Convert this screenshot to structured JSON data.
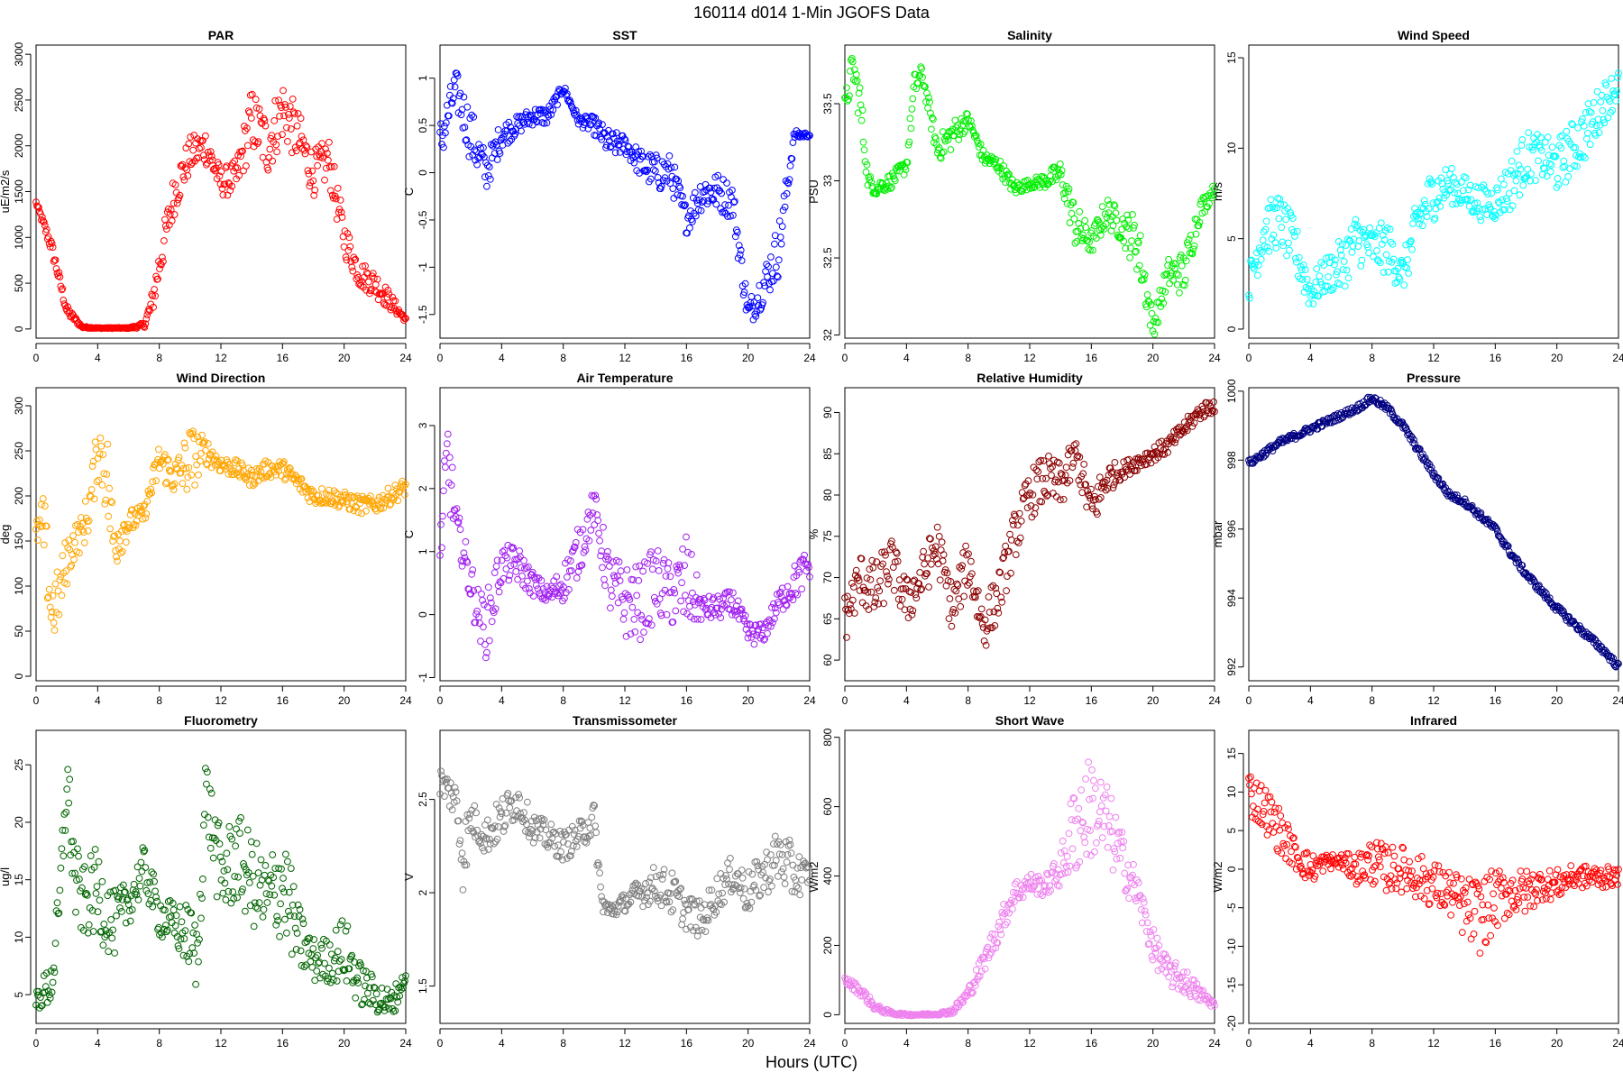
{
  "figure": {
    "title": "160114   d014   1-Min  JGOFS Data",
    "xlabel": "Hours (UTC)"
  },
  "chart_data": [
    {
      "type": "scatter",
      "title": "PAR",
      "ylabel": "uE/m2/s",
      "color": "#ff0000",
      "xlim": [
        0,
        24
      ],
      "xticks": [
        0,
        4,
        8,
        12,
        16,
        20,
        24
      ],
      "ylim": [
        -100,
        3100
      ],
      "yticks": [
        0,
        500,
        1000,
        1500,
        2000,
        2500,
        3000
      ],
      "x": [
        0,
        1,
        2,
        3,
        4,
        5,
        6,
        7,
        7.5,
        8,
        9,
        10,
        11,
        12,
        13,
        14,
        15,
        16,
        17,
        18,
        19,
        20,
        21,
        22,
        23,
        24
      ],
      "y": [
        1380,
        900,
        200,
        20,
        10,
        10,
        10,
        40,
        250,
        700,
        1500,
        1900,
        2000,
        1600,
        1650,
        2300,
        2000,
        2400,
        2100,
        1700,
        1850,
        1000,
        600,
        500,
        300,
        100
      ],
      "spread": [
        20,
        80,
        60,
        10,
        5,
        5,
        5,
        30,
        150,
        200,
        250,
        200,
        200,
        150,
        200,
        350,
        350,
        350,
        300,
        250,
        250,
        200,
        150,
        150,
        100,
        20
      ]
    },
    {
      "type": "scatter",
      "title": "SST",
      "ylabel": "C",
      "color": "#0000ff",
      "xlim": [
        0,
        24
      ],
      "xticks": [
        0,
        4,
        8,
        12,
        16,
        20,
        24
      ],
      "ylim": [
        -1.75,
        1.35
      ],
      "yticks": [
        -1.5,
        -1.0,
        -0.5,
        0.0,
        0.5,
        1.0
      ],
      "x": [
        0,
        1,
        2,
        3,
        4,
        5,
        6,
        7,
        8,
        9,
        10,
        11,
        12,
        13,
        14,
        15,
        16,
        17,
        18,
        19,
        20,
        21,
        22,
        23,
        24
      ],
      "y": [
        0.3,
        0.9,
        0.4,
        0.0,
        0.4,
        0.5,
        0.6,
        0.6,
        0.9,
        0.55,
        0.5,
        0.3,
        0.3,
        0.1,
        0.0,
        0.0,
        -0.5,
        -0.2,
        -0.2,
        -0.3,
        -1.5,
        -1.2,
        -0.8,
        0.4,
        0.4
      ],
      "spread": [
        0.25,
        0.2,
        0.3,
        0.2,
        0.15,
        0.1,
        0.1,
        0.1,
        0.05,
        0.05,
        0.1,
        0.15,
        0.1,
        0.15,
        0.2,
        0.2,
        0.15,
        0.2,
        0.2,
        0.2,
        0.15,
        0.2,
        0.3,
        0.05,
        0.02
      ]
    },
    {
      "type": "scatter",
      "title": "Salinity",
      "ylabel": "PSU",
      "color": "#00ee00",
      "xlim": [
        0,
        24
      ],
      "xticks": [
        0,
        4,
        8,
        12,
        16,
        20,
        24
      ],
      "ylim": [
        31.98,
        33.88
      ],
      "yticks": [
        32.0,
        32.5,
        33.0,
        33.5
      ],
      "x": [
        0,
        0.5,
        1,
        1.5,
        2,
        3,
        4,
        4.5,
        5,
        6,
        7,
        8,
        9,
        10,
        11,
        12,
        13,
        14,
        15,
        16,
        17,
        18,
        19,
        20,
        21,
        22,
        23,
        24
      ],
      "y": [
        33.45,
        33.75,
        33.5,
        33.0,
        32.95,
        33.0,
        33.1,
        33.6,
        33.7,
        33.2,
        33.3,
        33.4,
        33.15,
        33.1,
        32.95,
        32.98,
        33.0,
        33.05,
        32.7,
        32.6,
        32.8,
        32.7,
        32.6,
        32.05,
        32.4,
        32.4,
        32.8,
        32.95
      ],
      "spread": [
        0.1,
        0.1,
        0.15,
        0.05,
        0.05,
        0.05,
        0.05,
        0.1,
        0.05,
        0.08,
        0.1,
        0.05,
        0.05,
        0.05,
        0.05,
        0.03,
        0.05,
        0.08,
        0.15,
        0.08,
        0.1,
        0.1,
        0.2,
        0.08,
        0.1,
        0.15,
        0.08,
        0.03
      ]
    },
    {
      "type": "scatter",
      "title": "Wind Speed",
      "ylabel": "m/s",
      "color": "#00ffff",
      "xlim": [
        0,
        24
      ],
      "xticks": [
        0,
        4,
        8,
        12,
        16,
        20,
        24
      ],
      "ylim": [
        -0.5,
        15.7
      ],
      "yticks": [
        0,
        5,
        10,
        15
      ],
      "x": [
        0,
        1,
        2,
        3,
        4,
        5,
        6,
        7,
        8,
        9,
        10,
        11,
        12,
        13,
        14,
        15,
        16,
        17,
        18,
        19,
        20,
        21,
        22,
        23,
        24
      ],
      "y": [
        2.5,
        5.5,
        6.0,
        4.5,
        2.0,
        3.0,
        3.5,
        5.0,
        4.5,
        4.5,
        3.0,
        6.0,
        7.5,
        8.0,
        7.5,
        7.0,
        7.0,
        8.0,
        9.5,
        9.5,
        9.0,
        10.0,
        11.0,
        12.5,
        13.5
      ],
      "spread": [
        1.0,
        1.5,
        1.5,
        1.5,
        1.0,
        1.0,
        1.5,
        1.5,
        1.2,
        1.5,
        1.0,
        1.5,
        1.5,
        1.0,
        1.0,
        1.0,
        1.0,
        1.5,
        1.5,
        1.2,
        1.5,
        1.5,
        1.5,
        1.2,
        1.0
      ]
    },
    {
      "type": "scatter",
      "title": "Wind Direction",
      "ylabel": "deg",
      "color": "#ffa500",
      "xlim": [
        0,
        24
      ],
      "xticks": [
        0,
        4,
        8,
        12,
        16,
        20,
        24
      ],
      "ylim": [
        -5,
        320
      ],
      "yticks": [
        0,
        50,
        100,
        150,
        200,
        250,
        300
      ],
      "x": [
        0,
        0.5,
        1,
        1.5,
        2,
        2.5,
        3,
        3.5,
        4,
        4.5,
        5,
        6,
        7,
        8,
        9,
        10,
        11,
        12,
        13,
        14,
        15,
        16,
        17,
        18,
        19,
        20,
        21,
        22,
        23,
        24
      ],
      "y": [
        160,
        165,
        70,
        90,
        130,
        150,
        160,
        190,
        250,
        240,
        150,
        170,
        180,
        240,
        220,
        240,
        250,
        235,
        230,
        220,
        230,
        230,
        215,
        200,
        200,
        195,
        190,
        190,
        200,
        210
      ],
      "spread": [
        10,
        40,
        40,
        30,
        30,
        20,
        20,
        30,
        30,
        60,
        40,
        15,
        10,
        20,
        20,
        40,
        15,
        10,
        10,
        10,
        10,
        10,
        10,
        10,
        10,
        10,
        10,
        10,
        10,
        10
      ]
    },
    {
      "type": "scatter",
      "title": "Air Temperature",
      "ylabel": "C",
      "color": "#a020f0",
      "xlim": [
        0,
        24
      ],
      "xticks": [
        0,
        4,
        8,
        12,
        16,
        20,
        24
      ],
      "ylim": [
        -1.05,
        3.6
      ],
      "yticks": [
        -1,
        0,
        1,
        2,
        3
      ],
      "x": [
        0,
        0.5,
        1,
        1.5,
        2,
        2.5,
        3,
        3.5,
        4,
        5,
        6,
        7,
        8,
        9,
        10,
        11,
        12,
        13,
        14,
        15,
        16,
        17,
        18,
        19,
        20,
        21,
        22,
        23,
        24
      ],
      "y": [
        1.0,
        2.5,
        1.5,
        1.0,
        0.5,
        0.0,
        -0.2,
        0.3,
        0.8,
        0.8,
        0.5,
        0.3,
        0.5,
        1.0,
        1.7,
        0.5,
        0.2,
        0.2,
        0.5,
        0.3,
        0.5,
        0.1,
        0.1,
        0.2,
        -0.3,
        -0.3,
        0.2,
        0.5,
        0.8
      ],
      "spread": [
        0.3,
        0.8,
        0.3,
        0.3,
        0.4,
        0.4,
        0.5,
        0.5,
        0.3,
        0.3,
        0.2,
        0.15,
        0.3,
        0.4,
        0.3,
        0.5,
        0.6,
        0.6,
        0.6,
        0.5,
        0.8,
        0.2,
        0.2,
        0.2,
        0.2,
        0.15,
        0.2,
        0.3,
        0.3
      ]
    },
    {
      "type": "scatter",
      "title": "Relative Humidity",
      "ylabel": "%",
      "color": "#8b0000",
      "xlim": [
        0,
        24
      ],
      "xticks": [
        0,
        4,
        8,
        12,
        16,
        20,
        24
      ],
      "ylim": [
        57.5,
        93
      ],
      "yticks": [
        60,
        65,
        70,
        75,
        80,
        85,
        90
      ],
      "x": [
        0,
        1,
        2,
        3,
        4,
        5,
        6,
        7,
        8,
        9,
        10,
        11,
        12,
        13,
        14,
        15,
        16,
        17,
        18,
        19,
        20,
        21,
        22,
        23,
        24
      ],
      "y": [
        65,
        70,
        68,
        72,
        67,
        70,
        74,
        66,
        72,
        64,
        68,
        75,
        80,
        82,
        81,
        85,
        78,
        82,
        83,
        84,
        85,
        86,
        88,
        90,
        91
      ],
      "spread": [
        3,
        3,
        4,
        3,
        3,
        3,
        3,
        3,
        3,
        3,
        3,
        3,
        3,
        3,
        3,
        2,
        3,
        2,
        1,
        1,
        1,
        1,
        1,
        1,
        1
      ]
    },
    {
      "type": "scatter",
      "title": "Pressure",
      "ylabel": "mbar",
      "color": "#000080",
      "xlim": [
        0,
        24
      ],
      "xticks": [
        0,
        4,
        8,
        12,
        16,
        20,
        24
      ],
      "ylim": [
        991.6,
        1000.1
      ],
      "yticks": [
        992,
        994,
        996,
        998,
        1000
      ],
      "x": [
        0,
        1,
        2,
        3,
        4,
        5,
        6,
        7,
        8,
        9,
        10,
        11,
        12,
        13,
        14,
        15,
        16,
        17,
        18,
        19,
        20,
        21,
        22,
        23,
        24
      ],
      "y": [
        997.9,
        998.2,
        998.5,
        998.7,
        998.9,
        999.1,
        999.3,
        999.5,
        999.8,
        999.5,
        999.0,
        998.3,
        997.6,
        997.0,
        996.8,
        996.4,
        996.0,
        995.3,
        994.7,
        994.2,
        993.7,
        993.3,
        992.9,
        992.5,
        992.0
      ],
      "spread": [
        0.1,
        0.1,
        0.1,
        0.1,
        0.1,
        0.1,
        0.1,
        0.1,
        0.1,
        0.1,
        0.1,
        0.1,
        0.1,
        0.1,
        0.1,
        0.1,
        0.1,
        0.1,
        0.1,
        0.1,
        0.1,
        0.1,
        0.1,
        0.1,
        0.1
      ]
    },
    {
      "type": "scatter",
      "title": "Fluorometry",
      "ylabel": "ug/l",
      "color": "#006400",
      "xlim": [
        0,
        24
      ],
      "xticks": [
        0,
        4,
        8,
        12,
        16,
        20,
        24
      ],
      "ylim": [
        2.5,
        28
      ],
      "yticks": [
        5,
        10,
        15,
        20,
        25
      ],
      "x": [
        0,
        1,
        1.5,
        2,
        2.5,
        3,
        4,
        5,
        6,
        7,
        8,
        9,
        10,
        10.5,
        11,
        12,
        13,
        14,
        15,
        16,
        17,
        18,
        19,
        20,
        21,
        22,
        23,
        24
      ],
      "y": [
        4.5,
        6,
        12,
        24,
        15,
        13,
        14,
        11,
        13,
        16,
        12,
        11,
        10,
        8,
        23,
        15,
        17,
        15,
        13,
        15,
        10,
        8,
        8,
        9,
        6,
        5,
        4,
        6.5
      ],
      "spread": [
        1,
        2,
        3,
        3,
        4,
        3,
        4,
        3,
        2,
        2,
        2,
        2,
        3,
        3,
        3,
        4,
        4,
        4,
        4,
        5,
        3,
        2,
        2,
        3,
        2,
        1.5,
        1.5,
        0.5
      ]
    },
    {
      "type": "scatter",
      "title": "Transmissometer",
      "ylabel": "V",
      "color": "#808080",
      "xlim": [
        0,
        24
      ],
      "xticks": [
        0,
        4,
        8,
        12,
        16,
        20,
        24
      ],
      "ylim": [
        1.3,
        2.87
      ],
      "yticks": [
        1.5,
        2.0,
        2.5
      ],
      "x": [
        0,
        1,
        1.5,
        2,
        3,
        4,
        5,
        6,
        7,
        8,
        9,
        10,
        10.5,
        11,
        12,
        13,
        14,
        15,
        16,
        17,
        18,
        19,
        20,
        21,
        22,
        23,
        24
      ],
      "y": [
        2.6,
        2.5,
        2.2,
        2.4,
        2.3,
        2.4,
        2.5,
        2.35,
        2.3,
        2.25,
        2.3,
        2.4,
        1.95,
        1.9,
        1.95,
        2.0,
        2.05,
        2.0,
        1.9,
        1.85,
        2.0,
        2.1,
        2.0,
        2.1,
        2.2,
        2.1,
        2.1
      ],
      "spread": [
        0.08,
        0.1,
        0.2,
        0.1,
        0.1,
        0.12,
        0.1,
        0.08,
        0.08,
        0.08,
        0.08,
        0.1,
        0.05,
        0.05,
        0.05,
        0.08,
        0.1,
        0.12,
        0.1,
        0.1,
        0.1,
        0.1,
        0.12,
        0.12,
        0.15,
        0.15,
        0.05
      ]
    },
    {
      "type": "scatter",
      "title": "Short Wave",
      "ylabel": "W/m2",
      "color": "#ee82ee",
      "xlim": [
        0,
        24
      ],
      "xticks": [
        0,
        4,
        8,
        12,
        16,
        20,
        24
      ],
      "ylim": [
        -25,
        820
      ],
      "yticks": [
        0,
        200,
        400,
        600,
        800
      ],
      "x": [
        0,
        1,
        2,
        3,
        4,
        5,
        6,
        7,
        8,
        9,
        10,
        11,
        12,
        13,
        14,
        15,
        16,
        17,
        18,
        19,
        20,
        21,
        22,
        23,
        24
      ],
      "y": [
        100,
        70,
        20,
        5,
        0,
        0,
        2,
        10,
        60,
        150,
        250,
        350,
        380,
        370,
        420,
        550,
        600,
        550,
        450,
        350,
        200,
        120,
        100,
        60,
        30
      ],
      "spread": [
        10,
        15,
        10,
        5,
        3,
        3,
        3,
        8,
        20,
        30,
        40,
        40,
        30,
        30,
        50,
        150,
        150,
        120,
        80,
        60,
        50,
        40,
        40,
        25,
        10
      ]
    },
    {
      "type": "scatter",
      "title": "Infrared",
      "ylabel": "W/m2",
      "color": "#ff0000",
      "xlim": [
        0,
        24
      ],
      "xticks": [
        0,
        4,
        8,
        12,
        16,
        20,
        24
      ],
      "ylim": [
        -20,
        18
      ],
      "yticks": [
        -20,
        -15,
        -10,
        -5,
        0,
        5,
        10,
        15
      ],
      "x": [
        0,
        1,
        2,
        3,
        4,
        5,
        6,
        7,
        8,
        9,
        10,
        11,
        12,
        13,
        14,
        15,
        16,
        17,
        18,
        19,
        20,
        21,
        22,
        23,
        24
      ],
      "y": [
        10,
        8,
        5,
        2,
        0,
        1,
        1,
        0,
        1,
        0,
        0,
        -1,
        -2,
        -3,
        -5,
        -6,
        -4,
        -3,
        -3,
        -2,
        -2,
        -1,
        -1,
        -1,
        -1
      ],
      "spread": [
        3,
        3,
        3,
        2,
        2,
        1,
        1,
        2,
        3,
        3,
        3,
        3,
        3,
        3,
        4,
        5,
        4,
        3,
        3,
        2,
        2,
        1.5,
        1.5,
        1.5,
        1
      ]
    }
  ]
}
